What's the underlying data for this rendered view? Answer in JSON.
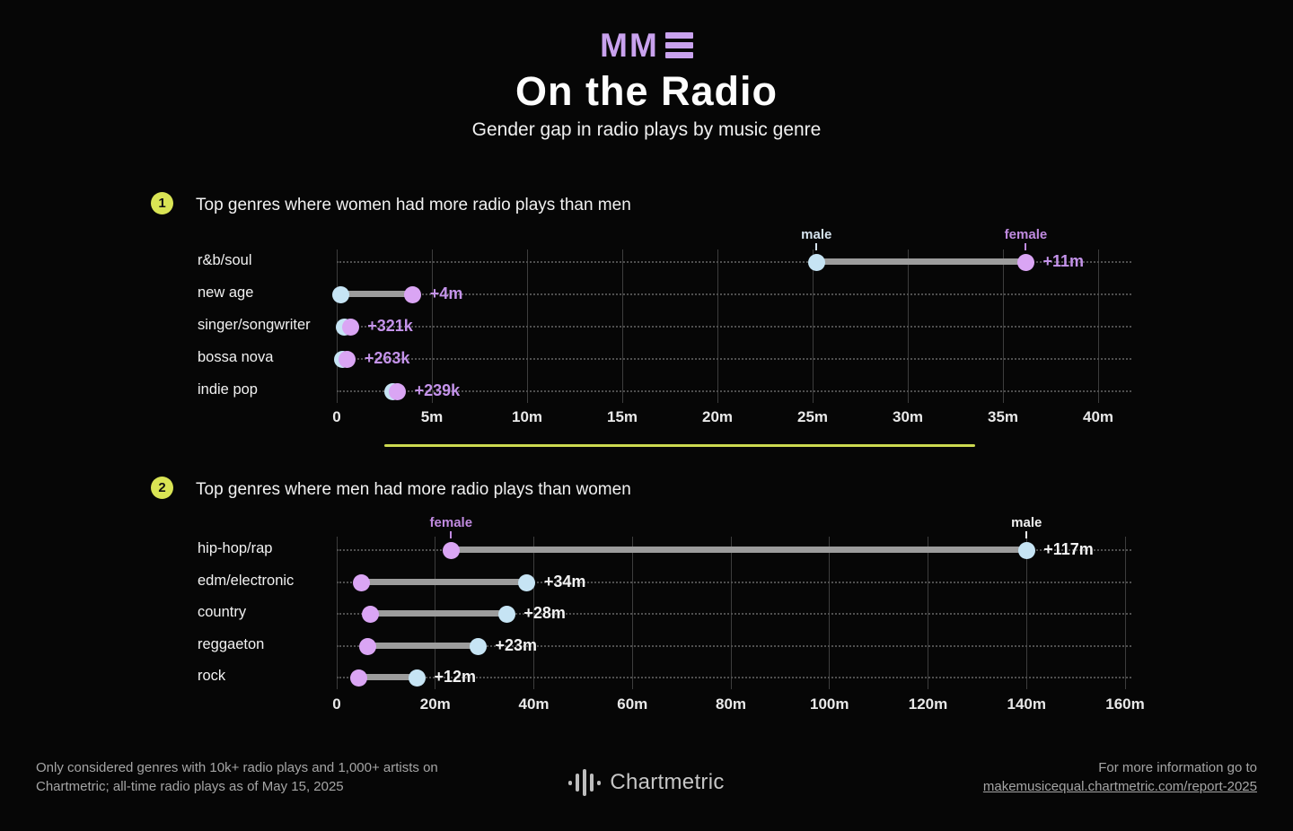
{
  "header": {
    "logo_text": "MM",
    "logo_icon": "triple-bars",
    "title": "On the Radio",
    "subtitle": "Gender gap in radio plays by music genre"
  },
  "colors": {
    "background": "#060606",
    "accent_purple": "#c9a2ee",
    "male_dot": "#c6e4f4",
    "female_dot": "#daa5f4",
    "bar_gray": "#9c9c9c",
    "badge_yellow": "#d9e454",
    "divider_yellow": "#ccd950"
  },
  "chart_data": [
    {
      "type": "dumbbell",
      "section": "1",
      "title": "Top genres where women had more radio plays than men",
      "x_unit": "all-time radio plays (m = millions)",
      "xlim": [
        0,
        40
      ],
      "grid": true,
      "tick_values": [
        0,
        5,
        10,
        15,
        20,
        25,
        30,
        35,
        40
      ],
      "tick_labels": [
        "0",
        "5m",
        "10m",
        "15m",
        "20m",
        "25m",
        "30m",
        "35m",
        "40m"
      ],
      "rows": [
        {
          "genre": "r&b/soul",
          "male_m": 25.2,
          "female_m": 36.2,
          "gap_label": "+11m"
        },
        {
          "genre": "new age",
          "male_m": 0.2,
          "female_m": 4.0,
          "gap_label": "+4m"
        },
        {
          "genre": "singer/songwriter",
          "male_m": 0.4,
          "female_m": 0.72,
          "gap_label": "+321k"
        },
        {
          "genre": "bossa nova",
          "male_m": 0.3,
          "female_m": 0.56,
          "gap_label": "+263k"
        },
        {
          "genre": "indie pop",
          "male_m": 2.95,
          "female_m": 3.19,
          "gap_label": "+239k"
        }
      ],
      "annotations": [
        {
          "text": "male",
          "series": "male_m",
          "row_index": 0,
          "color": "#d5e3ee"
        },
        {
          "text": "female",
          "series": "female_m",
          "row_index": 0,
          "color": "#c08ae0"
        }
      ],
      "gap_label_color": "#c493ea"
    },
    {
      "type": "dumbbell",
      "section": "2",
      "title": "Top genres where men had more radio plays than women",
      "x_unit": "all-time radio plays (m = millions)",
      "xlim": [
        0,
        160
      ],
      "grid": true,
      "tick_values": [
        0,
        20,
        40,
        60,
        80,
        100,
        120,
        140,
        160
      ],
      "tick_labels": [
        "0",
        "20m",
        "40m",
        "60m",
        "80m",
        "100m",
        "120m",
        "140m",
        "160m"
      ],
      "rows": [
        {
          "genre": "hip-hop/rap",
          "male_m": 140.0,
          "female_m": 23.2,
          "gap_label": "+117m"
        },
        {
          "genre": "edm/electronic",
          "male_m": 38.6,
          "female_m": 5.0,
          "gap_label": "+34m"
        },
        {
          "genre": "country",
          "male_m": 34.5,
          "female_m": 6.8,
          "gap_label": "+28m"
        },
        {
          "genre": "reggaeton",
          "male_m": 28.7,
          "female_m": 6.2,
          "gap_label": "+23m"
        },
        {
          "genre": "rock",
          "male_m": 16.3,
          "female_m": 4.4,
          "gap_label": "+12m"
        }
      ],
      "annotations": [
        {
          "text": "female",
          "series": "female_m",
          "row_index": 0,
          "color": "#c08ae0"
        },
        {
          "text": "male",
          "series": "male_m",
          "row_index": 0,
          "color": "#f2f2f2"
        }
      ],
      "gap_label_color": "#f2f2f2"
    }
  ],
  "footer": {
    "note": "Only considered genres with 10k+ radio plays and 1,000+ artists on Chartmetric; all-time radio plays as of May 15, 2025",
    "brand": "Chartmetric",
    "brand_icon": "waveform",
    "more_info_prefix": "For more information go to",
    "more_info_link": "makemusicequal.chartmetric.com/report-2025"
  }
}
